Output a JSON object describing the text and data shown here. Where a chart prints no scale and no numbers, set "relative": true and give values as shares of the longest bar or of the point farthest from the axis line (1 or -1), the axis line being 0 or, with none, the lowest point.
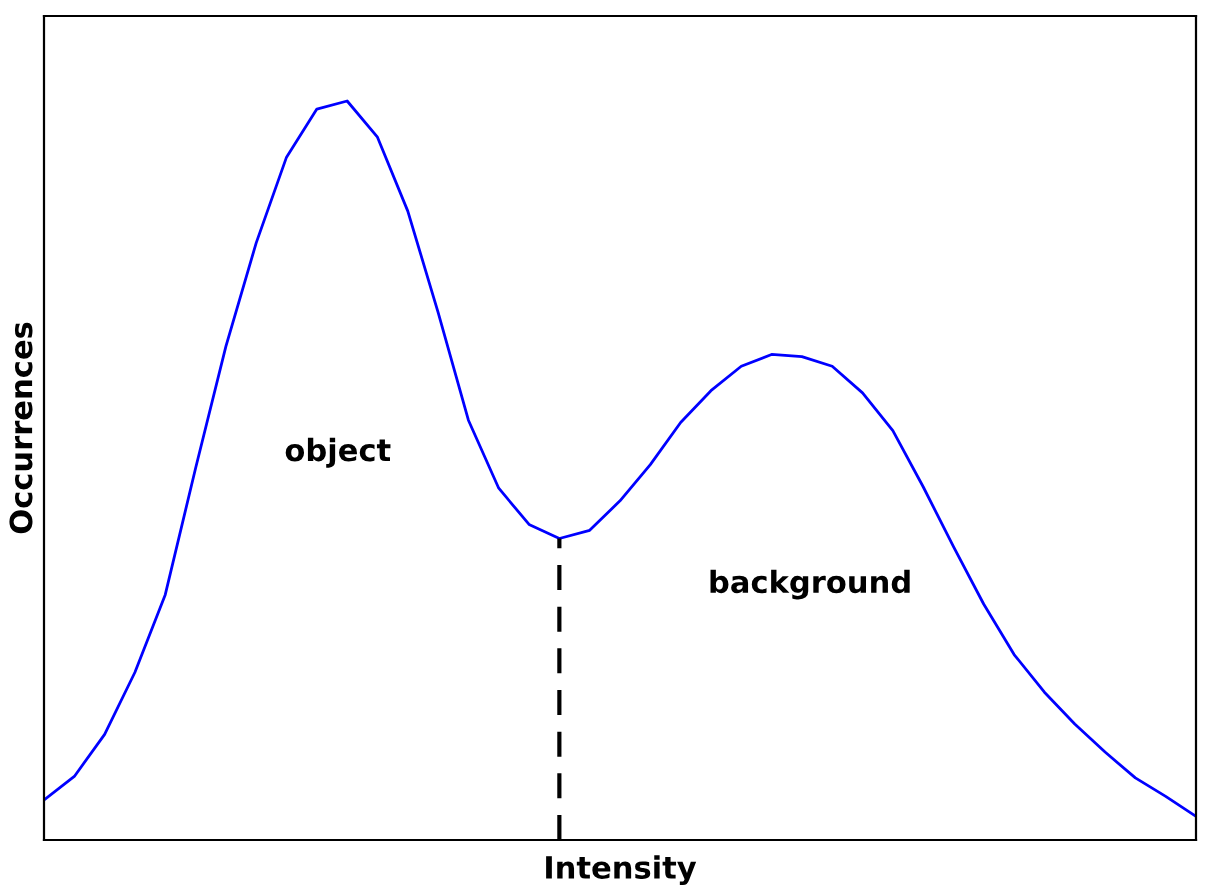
{
  "chart_data": {
    "type": "line",
    "xlabel": "Intensity",
    "ylabel": "Occurrences",
    "relative": true,
    "grid": false,
    "legend": false,
    "marker": "none",
    "line_style": "solid",
    "categories": [
      null,
      null,
      null,
      null,
      null,
      null,
      null,
      null,
      null,
      null,
      null,
      null,
      null,
      null,
      null,
      null,
      null,
      null,
      null,
      null,
      null,
      null,
      null,
      null,
      null,
      null,
      null,
      null,
      null,
      null,
      null,
      null,
      null,
      null,
      null,
      null,
      null,
      null,
      null
    ],
    "series": [
      {
        "color": "#0000ff",
        "values": [
          0.054,
          0.086,
          0.143,
          0.227,
          0.332,
          0.503,
          0.668,
          0.808,
          0.924,
          0.989,
          1.0,
          0.951,
          0.851,
          0.714,
          0.568,
          0.476,
          0.427,
          0.408,
          0.419,
          0.459,
          0.508,
          0.565,
          0.608,
          0.641,
          0.657,
          0.654,
          0.641,
          0.605,
          0.554,
          0.478,
          0.397,
          0.319,
          0.251,
          0.2,
          0.157,
          0.119,
          0.084,
          0.059,
          0.032
        ]
      }
    ],
    "annotations": [
      "object",
      "background"
    ]
  }
}
